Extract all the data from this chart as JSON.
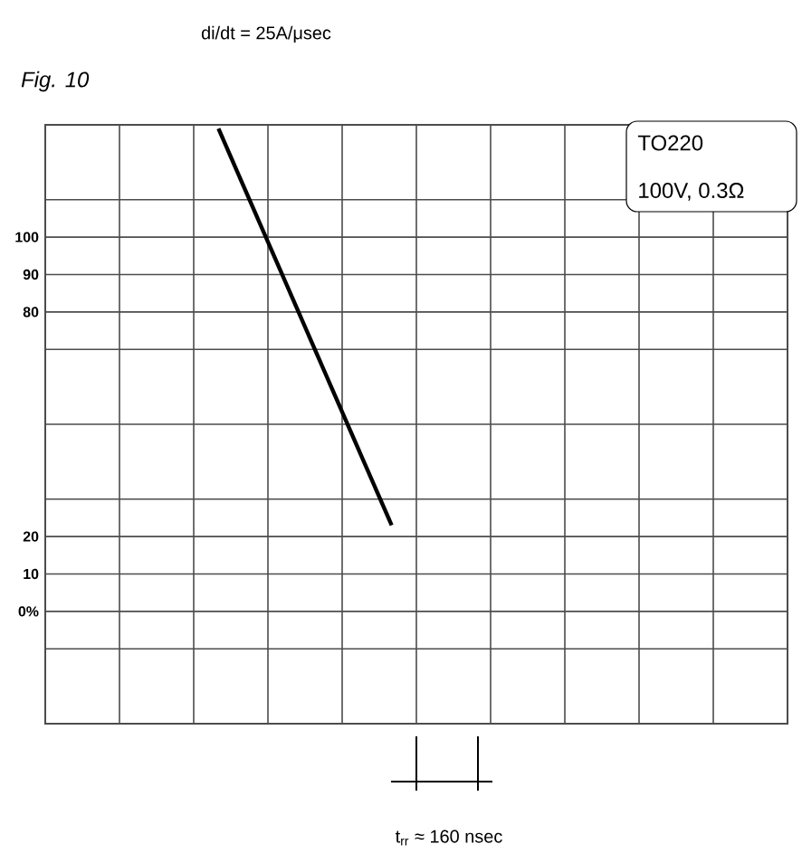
{
  "chart_data": {
    "type": "line",
    "title": "Fig. 10",
    "annotations": [
      "di/dt = 25A/μsec",
      "TO220",
      "100V, 0.3Ω",
      "t$_{rr}$ ≈ 160 nsec"
    ],
    "categories": [
      null,
      null,
      null,
      null,
      null,
      null,
      null,
      null,
      null,
      null,
      null,
      null,
      null,
      null,
      null,
      null,
      null,
      null,
      null,
      null,
      null,
      null,
      null,
      null,
      null,
      null,
      null,
      null,
      null,
      null,
      null
    ],
    "series": [
      {
        "color": "#000000",
        "values": [
          null,
          null,
          null,
          null,
          null,
          null,
          null,
          129,
          null,
          null,
          null,
          null,
          null,
          null,
          23,
          null,
          null,
          null,
          null,
          null,
          null,
          null,
          null,
          null,
          null,
          null,
          null,
          null,
          null,
          null,
          null
        ]
      }
    ],
    "ylim": [
      -30,
      130
    ],
    "yticks": [
      {
        "value": -30,
        "label": null
      },
      {
        "value": -10,
        "label": null
      },
      {
        "value": 0,
        "label": "0%"
      },
      {
        "value": 10,
        "label": "10"
      },
      {
        "value": 20,
        "label": "20"
      },
      {
        "value": 30,
        "label": null
      },
      {
        "value": 50,
        "label": null
      },
      {
        "value": 70,
        "label": null
      },
      {
        "value": 80,
        "label": "80"
      },
      {
        "value": 90,
        "label": "90"
      },
      {
        "value": 100,
        "label": "100"
      },
      {
        "value": 110,
        "label": null
      },
      {
        "value": 130,
        "label": null
      }
    ],
    "tick_labels": "y",
    "grid": true
  }
}
